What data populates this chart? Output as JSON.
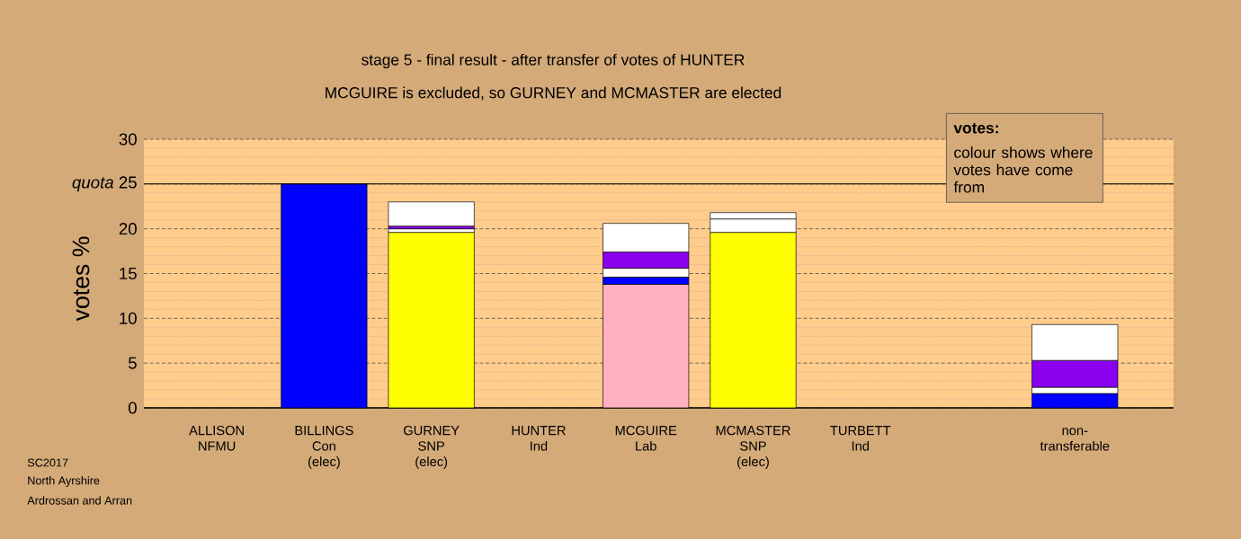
{
  "chart_data": {
    "type": "bar",
    "stacked": true,
    "title": "stage 5 - final result - after transfer of votes of HUNTER",
    "subtitle": "MCGUIRE is excluded, so GURNEY and MCMASTER are elected",
    "ylabel": "votes %",
    "categories": [
      "ALLISON NFMU",
      "BILLINGS Con (elec)",
      "GURNEY SNP (elec)",
      "HUNTER Ind",
      "MCGUIRE Lab",
      "MCMASTER SNP (elec)",
      "TURBETT Ind",
      null,
      "non-transferable"
    ],
    "series": [
      {
        "values": [
          0,
          25,
          19.6,
          0,
          13.8,
          19.6,
          0,
          null,
          1.6
        ],
        "colors": [
          "#ffffff",
          "#0000ff",
          "#ffff00",
          "#ffffff",
          "#ffb0c0",
          "#ffff00",
          "#ffffff",
          "#ffffff",
          "#0000ff"
        ]
      },
      {
        "values": [
          0,
          0,
          0.4,
          0,
          0.8,
          1.5,
          0,
          null,
          0.7
        ],
        "colors": [
          "#ffffff",
          "#ffffff",
          "#ffffff",
          "#ffffff",
          "#0000ff",
          "#ffffff",
          "#ffffff",
          "#ffffff",
          "#ffffff"
        ]
      },
      {
        "values": [
          0,
          0,
          0.3,
          0,
          1.0,
          0.7,
          0,
          null,
          3.0
        ],
        "colors": [
          "#ffffff",
          "#ffffff",
          "#8b00ee",
          "#ffffff",
          "#ffffff",
          "#ffffff",
          "#ffffff",
          "#ffffff",
          "#8b00ee"
        ]
      },
      {
        "values": [
          0,
          0,
          2.7,
          0,
          1.8,
          0,
          0,
          null,
          4.0
        ],
        "colors": [
          "#ffffff",
          "#ffffff",
          "#ffffff",
          "#ffffff",
          "#8b00ee",
          "#ffffff",
          "#ffffff",
          "#ffffff",
          "#ffffff"
        ]
      },
      {
        "values": [
          0,
          0,
          0,
          0,
          3.2,
          0,
          0,
          null,
          0
        ],
        "colors": [
          "#ffffff",
          "#ffffff",
          "#ffffff",
          "#ffffff",
          "#ffffff",
          "#ffffff",
          "#ffffff",
          "#ffffff",
          "#ffffff"
        ]
      }
    ],
    "ylim": [
      0,
      30
    ],
    "yticks": [
      0,
      5,
      10,
      15,
      20,
      {
        "value": 25,
        "label": "*quota* 25"
      },
      30
    ],
    "grid": "y",
    "ref_lines": [
      {
        "axis": "y",
        "value": 25,
        "color": "#000000"
      }
    ],
    "annotations": [
      "SC2017",
      "North Ayrshire",
      "Ardrossan and Arran",
      "votes:",
      "colour shows where votes have come from"
    ]
  }
}
